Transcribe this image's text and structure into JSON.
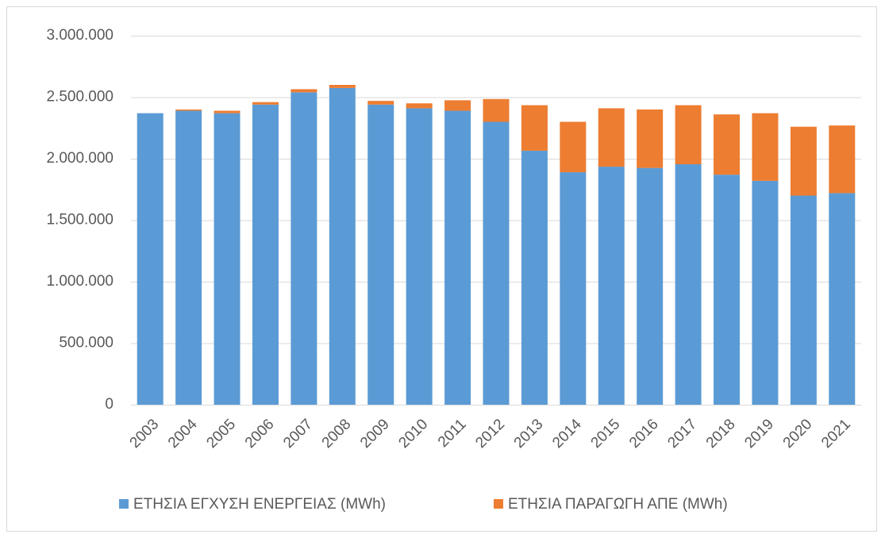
{
  "chart_data": {
    "type": "bar",
    "stacked": true,
    "categories": [
      "2003",
      "2004",
      "2005",
      "2006",
      "2007",
      "2008",
      "2009",
      "2010",
      "2011",
      "2012",
      "2013",
      "2014",
      "2015",
      "2016",
      "2017",
      "2018",
      "2019",
      "2020",
      "2021"
    ],
    "series": [
      {
        "name": "ΕΤΗΣΙΑ ΕΓΧΥΣΗ ΕΝΕΡΓΕΙΑΣ (MWh)",
        "color": "#5b9bd5",
        "values": [
          2370000,
          2390000,
          2370000,
          2440000,
          2540000,
          2575000,
          2440000,
          2410000,
          2390000,
          2300000,
          2065000,
          1890000,
          1935000,
          1925000,
          1955000,
          1870000,
          1820000,
          1700000,
          1720000
        ]
      },
      {
        "name": "ΕΤΗΣΙΑ ΠΑΡΑΓΩΓΗ ΑΠΕ (MWh)",
        "color": "#ed7d31",
        "values": [
          0,
          10000,
          20000,
          20000,
          25000,
          25000,
          30000,
          40000,
          85000,
          185000,
          370000,
          410000,
          475000,
          475000,
          480000,
          490000,
          550000,
          560000,
          550000
        ]
      }
    ],
    "ylim": [
      0,
      3000000
    ],
    "yticks": [
      0,
      {
        "value": 500000,
        "label": "500.000"
      },
      {
        "value": 1000000,
        "label": "1.000.000"
      },
      {
        "value": 1500000,
        "label": "1.500.000"
      },
      {
        "value": 2000000,
        "label": "2.000.000"
      },
      {
        "value": 2500000,
        "label": "2.500.000"
      },
      {
        "value": 3000000,
        "label": "3.000.000"
      }
    ],
    "grid": true,
    "legend": "bottom"
  }
}
